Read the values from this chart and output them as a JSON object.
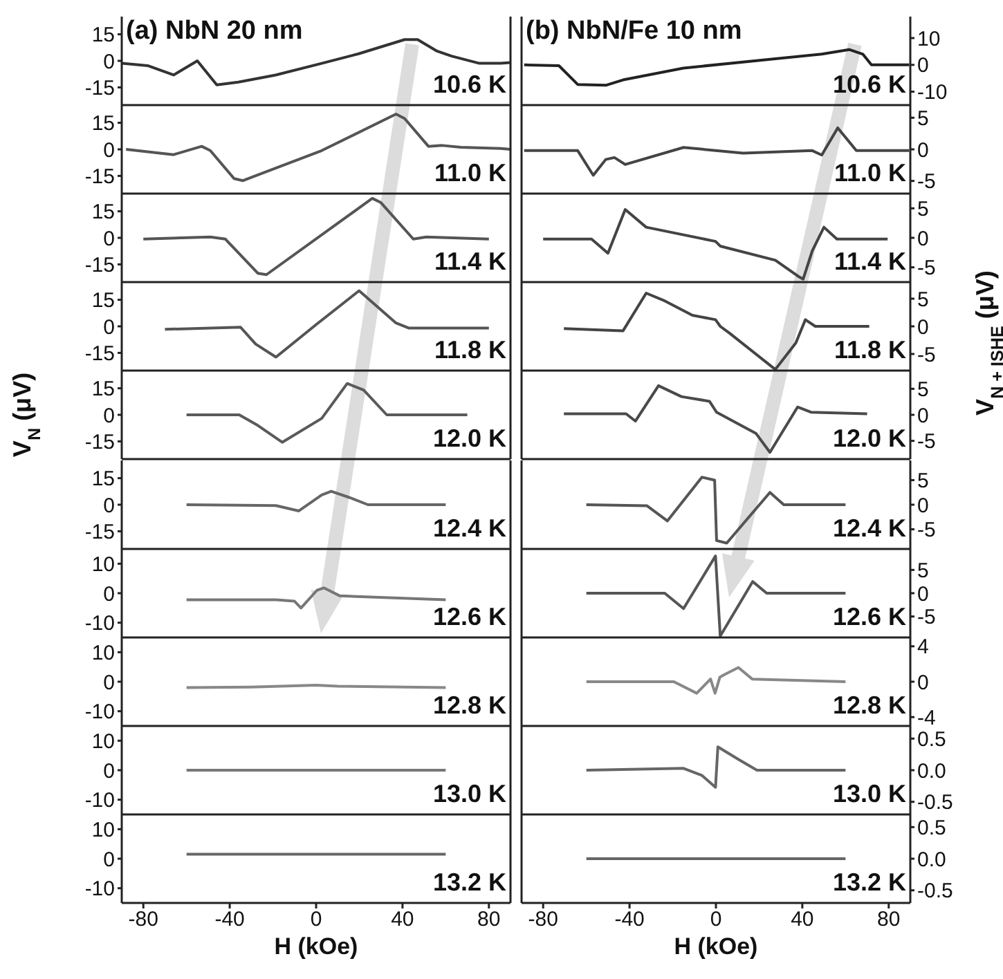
{
  "chart_data": [
    {
      "type": "line",
      "title": "(a) NbN 20 nm",
      "annotations": [
        "10.6 K"
      ],
      "x": [
        -90,
        -78,
        -66,
        -55,
        -46,
        -36,
        -18.7,
        2.6,
        19.7,
        41,
        47,
        56,
        62.7,
        75.6,
        85.5,
        90
      ],
      "series": [
        {
          "color": "#333333",
          "values": [
            -1.4,
            -2.7,
            -8,
            0,
            -13.6,
            -12,
            -8,
            -1.4,
            4,
            12,
            12,
            5.5,
            2.7,
            -1.4,
            -1.4,
            -1
          ]
        }
      ],
      "xlim": [
        -90,
        90
      ],
      "xticks": [
        -80,
        -40,
        0,
        40,
        80
      ],
      "ylim": [
        -25,
        25
      ],
      "yticks": [
        -15,
        0,
        15
      ],
      "tick_labels": "y",
      "marker": "none"
    },
    {
      "type": "line",
      "annotations": [
        "11.0 K"
      ],
      "x": [
        -88,
        -66,
        -53,
        -49,
        -38,
        -34,
        2.6,
        37,
        41,
        52,
        58.4,
        67,
        85.5,
        90
      ],
      "series": [
        {
          "color": "#555555",
          "values": [
            0,
            -3,
            1.7,
            -0.7,
            -16.5,
            -17.7,
            -0.7,
            19.9,
            17.4,
            1.7,
            2.2,
            1.2,
            0.5,
            0
          ]
        }
      ],
      "xlim": [
        -90,
        90
      ],
      "xticks": [
        -80,
        -40,
        0,
        40,
        80
      ],
      "ylim": [
        -25,
        25
      ],
      "yticks": [
        -15,
        0,
        15
      ],
      "tick_labels": "y",
      "marker": "none"
    },
    {
      "type": "line",
      "annotations": [
        "11.4 K"
      ],
      "x": [
        -80,
        -49,
        -42,
        -27,
        -23,
        26,
        30,
        45,
        51,
        80
      ],
      "series": [
        {
          "color": "#555555",
          "values": [
            -0.7,
            0.5,
            -0.7,
            -20,
            -20.8,
            22.3,
            19.9,
            -0.7,
            0.5,
            -0.7
          ]
        }
      ],
      "xlim": [
        -90,
        90
      ],
      "xticks": [
        -80,
        -40,
        0,
        40,
        80
      ],
      "ylim": [
        -25,
        25
      ],
      "yticks": [
        -15,
        0,
        15
      ],
      "tick_labels": "y",
      "marker": "none"
    },
    {
      "type": "line",
      "annotations": [
        "11.8 K"
      ],
      "x": [
        -70,
        -35,
        -28,
        -18.6,
        0,
        19.9,
        37,
        43,
        80
      ],
      "series": [
        {
          "color": "#555555",
          "values": [
            -1.7,
            -0.5,
            -10,
            -17.4,
            1,
            20.1,
            1.9,
            -1,
            -1
          ]
        }
      ],
      "xlim": [
        -90,
        90
      ],
      "xticks": [
        -80,
        -40,
        0,
        40,
        80
      ],
      "ylim": [
        -25,
        25
      ],
      "yticks": [
        -15,
        0,
        15
      ],
      "tick_labels": "y",
      "marker": "none"
    },
    {
      "type": "line",
      "ylabel": "V$_{N}$ (μV)",
      "annotations": [
        "12.0 K"
      ],
      "x": [
        -60,
        -35.6,
        -27,
        -15.7,
        2.6,
        14.4,
        22,
        32.7,
        70
      ],
      "series": [
        {
          "color": "#5a5a5a",
          "values": [
            0,
            0,
            -6,
            -15.5,
            -2,
            17.7,
            14,
            0,
            0
          ]
        }
      ],
      "xlim": [
        -90,
        90
      ],
      "xticks": [
        -80,
        -40,
        0,
        40,
        80
      ],
      "ylim": [
        -25,
        25
      ],
      "yticks": [
        -15,
        0,
        15
      ],
      "tick_labels": "y",
      "marker": "none"
    },
    {
      "type": "line",
      "annotations": [
        "12.4 K"
      ],
      "x": [
        -60,
        -18.6,
        -8,
        2.6,
        7,
        15.6,
        24,
        60
      ],
      "series": [
        {
          "color": "#666666",
          "values": [
            0,
            -0.5,
            -3.5,
            5.5,
            7.6,
            4,
            0,
            0
          ]
        }
      ],
      "xlim": [
        -90,
        90
      ],
      "xticks": [
        -80,
        -40,
        0,
        40,
        80
      ],
      "ylim": [
        -25,
        25
      ],
      "yticks": [
        -15,
        0,
        15
      ],
      "tick_labels": "y",
      "marker": "none"
    },
    {
      "type": "line",
      "annotations": [
        "12.6 K"
      ],
      "x": [
        -60,
        -18.6,
        -10,
        -7,
        0.4,
        3.6,
        11,
        60
      ],
      "series": [
        {
          "color": "#777777",
          "values": [
            -2.2,
            -2.2,
            -2.7,
            -5,
            1,
            1.8,
            -0.9,
            -2.2
          ]
        }
      ],
      "xlim": [
        -90,
        90
      ],
      "xticks": [
        -80,
        -40,
        0,
        40,
        80
      ],
      "ylim": [
        -15,
        15
      ],
      "yticks": [
        -10,
        0,
        10
      ],
      "tick_labels": "y",
      "marker": "none"
    },
    {
      "type": "line",
      "annotations": [
        "12.8 K"
      ],
      "x": [
        -60,
        -30,
        0,
        10,
        60
      ],
      "series": [
        {
          "color": "#888888",
          "values": [
            -2,
            -1.8,
            -1.2,
            -1.5,
            -2
          ]
        }
      ],
      "xlim": [
        -90,
        90
      ],
      "xticks": [
        -80,
        -40,
        0,
        40,
        80
      ],
      "ylim": [
        -15,
        15
      ],
      "yticks": [
        -10,
        0,
        10
      ],
      "tick_labels": "y",
      "marker": "none"
    },
    {
      "type": "line",
      "annotations": [
        "13.0 K"
      ],
      "x": [
        -60,
        0,
        60
      ],
      "series": [
        {
          "color": "#777777",
          "values": [
            0,
            0,
            0
          ]
        }
      ],
      "xlim": [
        -90,
        90
      ],
      "xticks": [
        -80,
        -40,
        0,
        40,
        80
      ],
      "ylim": [
        -15,
        15
      ],
      "yticks": [
        -10,
        0,
        10
      ],
      "tick_labels": "y",
      "marker": "none"
    },
    {
      "type": "line",
      "xlabel": "H (kOe)",
      "annotations": [
        "13.2 K"
      ],
      "x": [
        -60,
        0,
        60
      ],
      "series": [
        {
          "color": "#666666",
          "values": [
            1.5,
            1.5,
            1.5
          ]
        }
      ],
      "xlim": [
        -90,
        90
      ],
      "xticks": [
        -80,
        -40,
        0,
        40,
        80
      ],
      "ylim": [
        -15,
        15
      ],
      "yticks": [
        -10,
        0,
        10
      ],
      "marker": "none"
    },
    {
      "type": "line",
      "title": "(b) NbN/Fe 10 nm",
      "annotations": [
        "10.6 K"
      ],
      "x": [
        -88.8,
        -72.7,
        -64,
        -51,
        -43,
        -15,
        27.5,
        49,
        61.7,
        68,
        72,
        89.5
      ],
      "series": [
        {
          "color": "#222222",
          "values": [
            0,
            -0.3,
            -7.3,
            -7.6,
            -5.6,
            -1.2,
            2.3,
            4,
            5.7,
            4,
            0,
            0
          ]
        }
      ],
      "xlim": [
        -90,
        90
      ],
      "xticks": [
        -80,
        -40,
        0,
        40,
        80
      ],
      "ylim": [
        -15,
        18
      ],
      "yticks": [
        -10,
        0,
        10
      ],
      "tick_labels": "y",
      "marker": "none"
    },
    {
      "type": "line",
      "annotations": [
        "11.0 K"
      ],
      "x": [
        -88.8,
        -64,
        -56.8,
        -51,
        -47,
        -42,
        -15,
        12.6,
        44.6,
        49,
        56.4,
        65,
        89.5
      ],
      "series": [
        {
          "color": "#444444",
          "values": [
            -0.2,
            -0.2,
            -4.1,
            -1.6,
            -1.3,
            -2.4,
            0.3,
            -0.6,
            -0.2,
            -0.9,
            3.4,
            -0.2,
            -0.2
          ]
        }
      ],
      "xlim": [
        -90,
        90
      ],
      "xticks": [
        -80,
        -40,
        0,
        40,
        80
      ],
      "ylim": [
        -7,
        7
      ],
      "yticks": [
        -5,
        0,
        5
      ],
      "tick_labels": "y",
      "marker": "none"
    },
    {
      "type": "line",
      "annotations": [
        "11.4 K"
      ],
      "x": [
        -80,
        -57.6,
        -50,
        -42,
        -32.3,
        -0.2,
        2,
        27.5,
        38,
        40.4,
        44.6,
        50,
        56,
        79.5
      ],
      "series": [
        {
          "color": "#444444",
          "values": [
            -0.2,
            -0.2,
            -2.6,
            4.8,
            1.8,
            -0.6,
            -1.4,
            -3.8,
            -6.5,
            -7,
            -2.2,
            1.8,
            -0.2,
            -0.2
          ]
        }
      ],
      "xlim": [
        -90,
        90
      ],
      "xticks": [
        -80,
        -40,
        0,
        40,
        80
      ],
      "ylim": [
        -7.5,
        7.5
      ],
      "yticks": [
        -5,
        0,
        5
      ],
      "tick_labels": "y",
      "marker": "none"
    },
    {
      "type": "line",
      "annotations": [
        "11.8 K"
      ],
      "x": [
        -70.4,
        -43,
        -32.3,
        -23.7,
        -10.9,
        -0.2,
        2,
        6.2,
        27.5,
        37,
        41.4,
        46,
        71
      ],
      "series": [
        {
          "color": "#444444",
          "values": [
            -0.4,
            -0.8,
            6,
            4.6,
            2,
            1.2,
            0,
            -1.2,
            -7.8,
            -3,
            1.2,
            0,
            0
          ]
        }
      ],
      "xlim": [
        -90,
        90
      ],
      "xticks": [
        -80,
        -40,
        0,
        40,
        80
      ],
      "ylim": [
        -8,
        8
      ],
      "yticks": [
        -5,
        0,
        5
      ],
      "tick_labels": "y",
      "marker": "none"
    },
    {
      "type": "line",
      "ylabel": "V$_{N + ISHE}$ (μV)",
      "annotations": [
        "12.0 K"
      ],
      "x": [
        -70.4,
        -41.6,
        -37.3,
        -26.6,
        -16,
        -3,
        0.3,
        18.6,
        25,
        37.8,
        44,
        70
      ],
      "series": [
        {
          "color": "#4a4a4a",
          "values": [
            0.2,
            0.2,
            -1.2,
            5.6,
            3.5,
            2.6,
            0.5,
            -3.6,
            -7.2,
            1.5,
            0.5,
            0.2
          ]
        }
      ],
      "xlim": [
        -90,
        90
      ],
      "xticks": [
        -80,
        -40,
        0,
        40,
        80
      ],
      "ylim": [
        -8.5,
        8.5
      ],
      "yticks": [
        -5,
        0,
        5
      ],
      "tick_labels": "y",
      "marker": "none"
    },
    {
      "type": "line",
      "annotations": [
        "12.4 K"
      ],
      "x": [
        -60,
        -32,
        -22.5,
        -6.5,
        -0.6,
        0.3,
        5,
        25,
        31.4,
        60
      ],
      "series": [
        {
          "color": "#555555",
          "values": [
            0,
            -0.2,
            -3.3,
            5.6,
            5,
            -7.3,
            -7.8,
            2.5,
            0,
            0
          ]
        }
      ],
      "xlim": [
        -90,
        90
      ],
      "xticks": [
        -80,
        -40,
        0,
        40,
        80
      ],
      "ylim": [
        -9,
        9
      ],
      "yticks": [
        -5,
        0,
        5
      ],
      "tick_labels": "y",
      "marker": "none"
    },
    {
      "type": "line",
      "annotations": [
        "12.6 K"
      ],
      "x": [
        -60,
        -23.7,
        -15,
        -0.2,
        2,
        17,
        23.5,
        60
      ],
      "series": [
        {
          "color": "#555555",
          "values": [
            0,
            0,
            -3.3,
            8,
            -9.2,
            2.5,
            0,
            0
          ]
        }
      ],
      "xlim": [
        -90,
        90
      ],
      "xticks": [
        -80,
        -40,
        0,
        40,
        80
      ],
      "ylim": [
        -9.5,
        9.5
      ],
      "yticks": [
        -5,
        0,
        5
      ],
      "tick_labels": "y",
      "marker": "none"
    },
    {
      "type": "line",
      "annotations": [
        "12.8 K"
      ],
      "x": [
        -60,
        -19.5,
        -8.9,
        -2.5,
        -0.4,
        1.8,
        3.9,
        10.4,
        16.8,
        60
      ],
      "series": [
        {
          "color": "#888888",
          "values": [
            0,
            0,
            -1.3,
            0.3,
            -1.3,
            0.5,
            0.8,
            1.6,
            0.3,
            0
          ]
        }
      ],
      "xlim": [
        -90,
        90
      ],
      "xticks": [
        -80,
        -40,
        0,
        40,
        80
      ],
      "ylim": [
        -5,
        5
      ],
      "yticks": [
        -4,
        0,
        4
      ],
      "tick_labels": "y",
      "marker": "none"
    },
    {
      "type": "line",
      "annotations": [
        "13.0 K"
      ],
      "x": [
        -60,
        -15,
        -6.6,
        -0.2,
        0.9,
        10.5,
        19,
        60
      ],
      "series": [
        {
          "color": "#666666",
          "values": [
            0,
            0.03,
            -0.08,
            -0.27,
            0.37,
            0.17,
            0,
            0
          ]
        }
      ],
      "xlim": [
        -90,
        90
      ],
      "xticks": [
        -80,
        -40,
        0,
        40,
        80
      ],
      "ylim": [
        -0.7,
        0.7
      ],
      "yticks": [
        -0.5,
        {
          "value": 0,
          "label": "0.0"
        },
        0.5
      ],
      "tick_labels": "y",
      "marker": "none"
    },
    {
      "type": "line",
      "xlabel": "H (kOe)",
      "annotations": [
        "13.2 K"
      ],
      "x": [
        -60,
        0,
        60
      ],
      "series": [
        {
          "color": "#666666",
          "values": [
            0,
            0,
            0
          ]
        }
      ],
      "xlim": [
        -90,
        90
      ],
      "xticks": [
        -80,
        -40,
        0,
        40,
        80
      ],
      "ylim": [
        -0.7,
        0.7
      ],
      "yticks": [
        -0.5,
        {
          "value": 0,
          "label": "0.0"
        },
        0.5
      ],
      "marker": "none"
    }
  ]
}
